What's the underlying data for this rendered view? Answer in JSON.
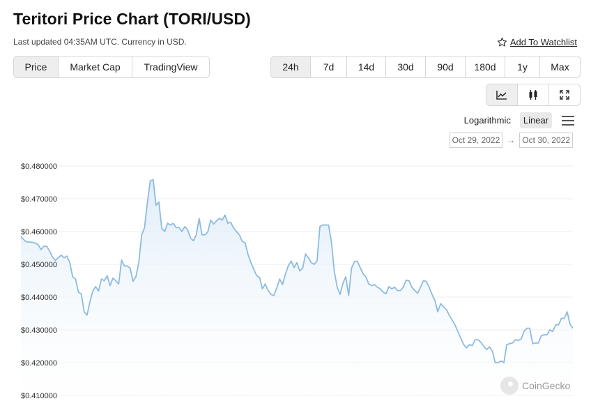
{
  "header": {
    "title": "Teritori Price Chart (TORI/USD)",
    "subtitle": "Last updated 04:35AM UTC. Currency in USD.",
    "watchlist_label": "Add To Watchlist"
  },
  "chart_type_tabs": [
    {
      "label": "Price",
      "active": true
    },
    {
      "label": "Market Cap",
      "active": false
    },
    {
      "label": "TradingView",
      "active": false
    }
  ],
  "range_tabs": [
    {
      "label": "24h",
      "active": true
    },
    {
      "label": "7d",
      "active": false
    },
    {
      "label": "14d",
      "active": false
    },
    {
      "label": "30d",
      "active": false
    },
    {
      "label": "90d",
      "active": false
    },
    {
      "label": "180d",
      "active": false
    },
    {
      "label": "1y",
      "active": false
    },
    {
      "label": "Max",
      "active": false
    }
  ],
  "view_buttons": [
    {
      "icon": "line-chart-icon",
      "active": true
    },
    {
      "icon": "candlestick-icon",
      "active": false
    },
    {
      "icon": "fullscreen-icon",
      "active": false
    }
  ],
  "scale": {
    "logarithmic_label": "Logarithmic",
    "linear_label": "Linear",
    "active": "linear"
  },
  "date_range": {
    "from": "Oct 29, 2022",
    "to": "Oct 30, 2022",
    "arrow": "→"
  },
  "watermark": "CoinGecko",
  "chart_data": {
    "type": "area",
    "title": "",
    "xlabel": "",
    "ylabel": "",
    "ylim": [
      0.41,
      0.48
    ],
    "yticks": [
      "$0.480000",
      "$0.470000",
      "$0.460000",
      "$0.450000",
      "$0.440000",
      "$0.430000",
      "$0.420000",
      "$0.410000"
    ],
    "ytick_values": [
      0.48,
      0.47,
      0.46,
      0.45,
      0.44,
      0.43,
      0.42,
      0.41
    ],
    "colors": {
      "line": "#8dbbe0",
      "fill_top": "#dcebf8",
      "fill_bottom": "#ffffff",
      "grid": "#ececec"
    },
    "series": [
      {
        "values": [
          0.4585,
          0.4575,
          0.4568,
          0.4568,
          0.4567,
          0.4565,
          0.456,
          0.4545,
          0.4555,
          0.4555,
          0.454,
          0.4522,
          0.4512,
          0.452,
          0.4528,
          0.452,
          0.4525,
          0.4505,
          0.4462,
          0.4455,
          0.4415,
          0.441,
          0.4355,
          0.4345,
          0.4385,
          0.4418,
          0.4432,
          0.4418,
          0.4455,
          0.445,
          0.4465,
          0.4435,
          0.4458,
          0.445,
          0.444,
          0.4513,
          0.4495,
          0.4495,
          0.4488,
          0.4448,
          0.4462,
          0.4505,
          0.459,
          0.4612,
          0.469,
          0.4755,
          0.4758,
          0.468,
          0.469,
          0.461,
          0.46,
          0.4625,
          0.462,
          0.4625,
          0.4612,
          0.4612,
          0.46,
          0.4615,
          0.4605,
          0.458,
          0.4572,
          0.459,
          0.464,
          0.459,
          0.459,
          0.4598,
          0.4635,
          0.4623,
          0.4632,
          0.464,
          0.4635,
          0.465,
          0.4625,
          0.4628,
          0.461,
          0.46,
          0.459,
          0.457,
          0.4565,
          0.453,
          0.4505,
          0.4485,
          0.4465,
          0.446,
          0.4425,
          0.444,
          0.442,
          0.4408,
          0.4405,
          0.4428,
          0.4455,
          0.4438,
          0.447,
          0.4495,
          0.451,
          0.449,
          0.4505,
          0.448,
          0.4488,
          0.4532,
          0.452,
          0.4505,
          0.45,
          0.451,
          0.4615,
          0.462,
          0.462,
          0.462,
          0.457,
          0.448,
          0.443,
          0.4408,
          0.4442,
          0.4462,
          0.4405,
          0.4488,
          0.4508,
          0.451,
          0.449,
          0.4472,
          0.4462,
          0.444,
          0.4435,
          0.4438,
          0.443,
          0.4425,
          0.4415,
          0.441,
          0.4432,
          0.4425,
          0.443,
          0.442,
          0.442,
          0.443,
          0.4452,
          0.445,
          0.443,
          0.442,
          0.4412,
          0.443,
          0.445,
          0.4448,
          0.443,
          0.4408,
          0.439,
          0.4355,
          0.438,
          0.437,
          0.4362,
          0.4345,
          0.433,
          0.4315,
          0.4295,
          0.4275,
          0.4255,
          0.4245,
          0.4255,
          0.4252,
          0.427,
          0.427,
          0.4262,
          0.425,
          0.424,
          0.4248,
          0.4235,
          0.42,
          0.42,
          0.4205,
          0.42,
          0.4255,
          0.4258,
          0.426,
          0.427,
          0.4268,
          0.4272,
          0.4295,
          0.4305,
          0.4305,
          0.4258,
          0.426,
          0.426,
          0.4282,
          0.4285,
          0.4285,
          0.43,
          0.4295,
          0.4315,
          0.4315,
          0.4335,
          0.4335,
          0.4355,
          0.4318,
          0.4305
        ]
      }
    ]
  }
}
